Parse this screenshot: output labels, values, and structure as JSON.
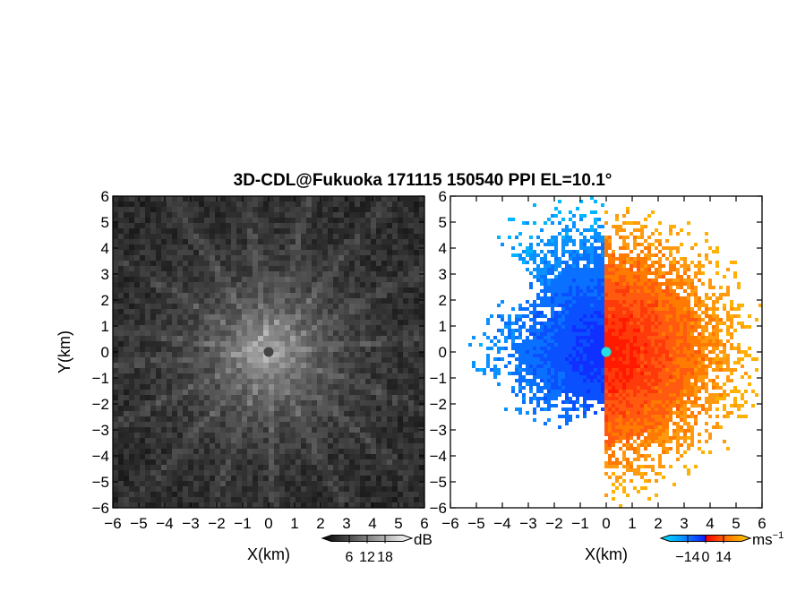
{
  "chart_data": [
    {
      "type": "heatmap",
      "title": "3D-CDL@Fukuoka 171115 150540 PPI EL=10.1°",
      "xlabel": "X(km)",
      "ylabel": "Y(km)",
      "xlim": [
        -6,
        6
      ],
      "ylim": [
        -6,
        6
      ],
      "x_ticks": [
        -6,
        -5,
        -4,
        -3,
        -2,
        -1,
        0,
        1,
        2,
        3,
        4,
        5,
        6
      ],
      "y_ticks": [
        -6,
        -5,
        -4,
        -3,
        -2,
        -1,
        0,
        1,
        2,
        3,
        4,
        5,
        6
      ],
      "colorbar": {
        "unit": "dB",
        "ticks": [
          6,
          12,
          18
        ],
        "range": [
          0,
          24
        ],
        "colors": [
          "#000000",
          "#ffffff"
        ]
      },
      "radar_site": {
        "x": 0,
        "y": 0
      }
    },
    {
      "type": "heatmap",
      "xlabel": "X(km)",
      "xlim": [
        -6,
        6
      ],
      "ylim": [
        -6,
        6
      ],
      "x_ticks": [
        -6,
        -5,
        -4,
        -3,
        -2,
        -1,
        0,
        1,
        2,
        3,
        4,
        5,
        6
      ],
      "y_ticks": [
        -6,
        -5,
        -4,
        -3,
        -2,
        -1,
        0,
        1,
        2,
        3,
        4,
        5,
        6
      ],
      "colorbar": {
        "unit": "ms",
        "unit_exponent": "−1",
        "ticks": [
          "−14",
          "0",
          "14"
        ],
        "range": [
          -28,
          28
        ],
        "colors": [
          "#00e5ff",
          "#0ab0ff",
          "#0060ff",
          "#1020ff",
          "#ff0000",
          "#ff4010",
          "#ff8c00",
          "#ffd000"
        ]
      },
      "radar_site": {
        "x": 0,
        "y": 0
      }
    }
  ],
  "figure": {
    "title": "3D-CDL@Fukuoka 171115 150540 PPI EL=10.1°",
    "ylabel": "Y(km)"
  }
}
